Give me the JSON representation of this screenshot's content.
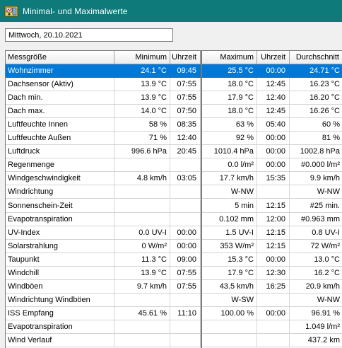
{
  "window": {
    "title": "Minimal- und Maximalwerte"
  },
  "date_field": {
    "value": "Mittwoch, 20.10.2021"
  },
  "table": {
    "headers": [
      "Messgröße",
      "Minimum",
      "Uhrzeit",
      "Maximum",
      "Uhrzeit",
      "Durchschnitt"
    ],
    "selected_row": 0,
    "rows": [
      [
        "Wohnzimmer",
        "24.1 °C",
        "09:45",
        "25.5 °C",
        "00:00",
        "24.71 °C"
      ],
      [
        "Dachsensor (Aktiv)",
        "13.9 °C",
        "07:55",
        "18.0 °C",
        "12:45",
        "16.23 °C"
      ],
      [
        "Dach min.",
        "13.9 °C",
        "07:55",
        "17.9 °C",
        "12:40",
        "16.20 °C"
      ],
      [
        "Dach max.",
        "14.0 °C",
        "07:50",
        "18.0 °C",
        "12:45",
        "16.26 °C"
      ],
      [
        "Luftfeuchte Innen",
        "58 %",
        "08:35",
        "63 %",
        "05:40",
        "60 %"
      ],
      [
        "Luftfeuchte Außen",
        "71 %",
        "12:40",
        "92 %",
        "00:00",
        "81 %"
      ],
      [
        "Luftdruck",
        "996.6 hPa",
        "20:45",
        "1010.4 hPa",
        "00:00",
        "1002.8 hPa"
      ],
      [
        "Regenmenge",
        "",
        "",
        "0.0 l/m²",
        "00:00",
        "#0.000 l/m²"
      ],
      [
        "Windgeschwindigkeit",
        "4.8 km/h",
        "03:05",
        "17.7 km/h",
        "15:35",
        "9.9 km/h"
      ],
      [
        "Windrichtung",
        "",
        "",
        "W-NW",
        "",
        "W-NW"
      ],
      [
        "Sonnenschein-Zeit",
        "",
        "",
        "5 min",
        "12:15",
        "#25 min."
      ],
      [
        "Evapotranspiration",
        "",
        "",
        "0.102 mm",
        "12:00",
        "#0.963 mm"
      ],
      [
        "UV-Index",
        "0.0 UV-I",
        "00:00",
        "1.5 UV-I",
        "12:15",
        "0.8 UV-I"
      ],
      [
        "Solarstrahlung",
        "0 W/m²",
        "00:00",
        "353 W/m²",
        "12:15",
        "72 W/m²"
      ],
      [
        "Taupunkt",
        "11.3 °C",
        "09:00",
        "15.3 °C",
        "00:00",
        "13.0 °C"
      ],
      [
        "Windchill",
        "13.9 °C",
        "07:55",
        "17.9 °C",
        "12:30",
        "16.2 °C"
      ],
      [
        "Windböen",
        "9.7 km/h",
        "07:55",
        "43.5 km/h",
        "16:25",
        "20.9 km/h"
      ],
      [
        "Windrichtung Windböen",
        "",
        "",
        "W-SW",
        "",
        "W-NW"
      ],
      [
        "ISS Empfang",
        "45.61 %",
        "11:10",
        "100.00 %",
        "00:00",
        "96.91 %"
      ],
      [
        "Evapotranspiration",
        "",
        "",
        "",
        "",
        "1.049 l/m²"
      ],
      [
        "Wind Verlauf",
        "",
        "",
        "",
        "",
        "437.2 km"
      ]
    ]
  }
}
